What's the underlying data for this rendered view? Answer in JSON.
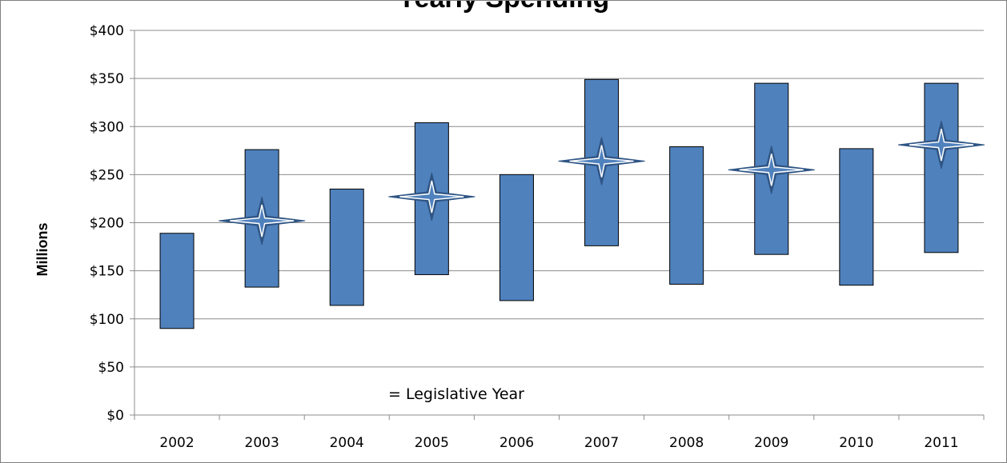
{
  "chart_data": {
    "type": "bar",
    "title": "Yearly Spending",
    "ylabel": "Millions",
    "xlabel": "",
    "ylim": [
      0,
      400
    ],
    "y_ticks": [
      "$0",
      "$50",
      "$100",
      "$150",
      "$200",
      "$250",
      "$300",
      "$350",
      "$400"
    ],
    "y_tick_values": [
      0,
      50,
      100,
      150,
      200,
      250,
      300,
      350,
      400
    ],
    "categories": [
      "2002",
      "2003",
      "2004",
      "2005",
      "2006",
      "2007",
      "2008",
      "2009",
      "2010",
      "2011"
    ],
    "series": [
      {
        "low": [
          90,
          133,
          114,
          146,
          119,
          176,
          136,
          167,
          135,
          169
        ],
        "high": [
          189,
          276,
          235,
          304,
          250,
          349,
          279,
          345,
          277,
          345
        ]
      }
    ],
    "legislative_markers": [
      {
        "year": "2003",
        "value": 202
      },
      {
        "year": "2005",
        "value": 227
      },
      {
        "year": "2007",
        "value": 264
      },
      {
        "year": "2009",
        "value": 255
      },
      {
        "year": "2011",
        "value": 281
      }
    ],
    "annotation": "= Legislative Year",
    "grid": true,
    "colors": {
      "bar_fill": "#4f81bd",
      "bar_stroke": "#000000",
      "marker_fill": "#4f81bd",
      "marker_stroke": "#2f5584",
      "grid": "#8c8c8c"
    }
  }
}
